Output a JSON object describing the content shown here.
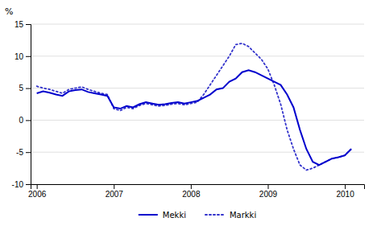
{
  "chart_data": {
    "type": "line",
    "ylabel": "%",
    "x": [
      2006.0,
      2006.0833333333333,
      2006.1666666666667,
      2006.25,
      2006.3333333333333,
      2006.4166666666667,
      2006.5,
      2006.5833333333333,
      2006.6666666666667,
      2006.75,
      2006.8333333333333,
      2006.9166666666667,
      2007.0,
      2007.0833333333333,
      2007.1666666666667,
      2007.25,
      2007.3333333333333,
      2007.4166666666667,
      2007.5,
      2007.5833333333333,
      2007.6666666666667,
      2007.75,
      2007.8333333333333,
      2007.9166666666667,
      2008.0,
      2008.0833333333333,
      2008.1666666666667,
      2008.25,
      2008.3333333333333,
      2008.4166666666667,
      2008.5,
      2008.5833333333333,
      2008.6666666666667,
      2008.75,
      2008.8333333333333,
      2008.9166666666667,
      2009.0,
      2009.0833333333333,
      2009.1666666666667,
      2009.25,
      2009.3333333333333,
      2009.4166666666667,
      2009.5,
      2009.5833333333333,
      2009.6666666666667,
      2009.75,
      2009.8333333333333,
      2009.9166666666667,
      2010.0,
      2010.0833333333333
    ],
    "series": [
      {
        "name": "Mekki",
        "color": "#0000cd",
        "line_style": "solid",
        "values": [
          4.2,
          4.5,
          4.3,
          4.0,
          3.8,
          4.5,
          4.7,
          4.8,
          4.4,
          4.2,
          4.0,
          3.8,
          2.0,
          1.8,
          2.2,
          2.0,
          2.5,
          2.8,
          2.6,
          2.4,
          2.5,
          2.7,
          2.8,
          2.6,
          2.8,
          3.0,
          3.5,
          4.0,
          4.8,
          5.0,
          6.0,
          6.5,
          7.5,
          7.8,
          7.5,
          7.0,
          6.5,
          6.0,
          5.5,
          4.0,
          2.0,
          -1.5,
          -4.5,
          -6.5,
          -7.0,
          -6.5,
          -6.0,
          -5.8,
          -5.5,
          -4.5
        ]
      },
      {
        "name": "Markki",
        "color": "#3333cc",
        "line_style": "dotted",
        "values": [
          5.3,
          5.0,
          4.8,
          4.5,
          4.2,
          4.8,
          5.0,
          5.2,
          4.8,
          4.5,
          4.2,
          4.0,
          1.8,
          1.5,
          2.0,
          1.8,
          2.3,
          2.6,
          2.4,
          2.2,
          2.3,
          2.5,
          2.6,
          2.4,
          2.6,
          2.8,
          4.0,
          5.5,
          7.0,
          8.5,
          10.0,
          11.8,
          12.0,
          11.5,
          10.5,
          9.5,
          8.0,
          5.5,
          2.5,
          -1.5,
          -4.5,
          -7.0,
          -7.8,
          -7.5,
          -7.0,
          -6.5,
          -6.0,
          -5.8,
          -5.5,
          -4.5
        ]
      }
    ],
    "xlim": [
      2005.92,
      2010.25
    ],
    "xticks": [
      2006,
      2007,
      2008,
      2009,
      2010
    ],
    "ylim": [
      -10,
      15
    ],
    "yticks": [
      -10,
      -5,
      0,
      5,
      10,
      15
    ],
    "grid": true,
    "legend": "bottom"
  }
}
